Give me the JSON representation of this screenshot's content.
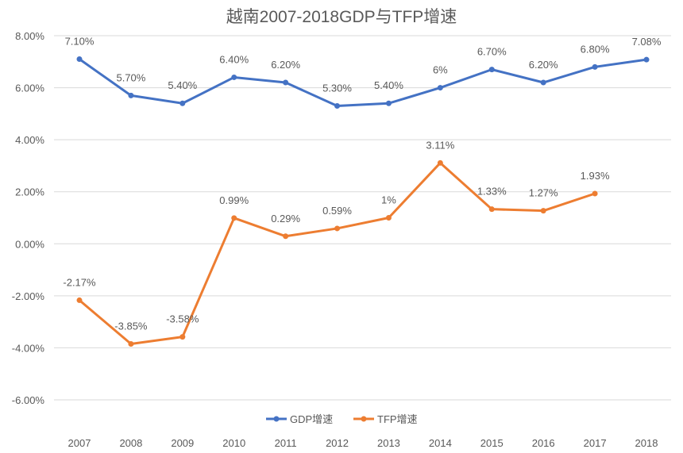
{
  "chart_data": {
    "type": "line",
    "title": "越南2007-2018GDP与TFP增速",
    "xlabel": "",
    "ylabel": "",
    "categories": [
      "2007",
      "2008",
      "2009",
      "2010",
      "2011",
      "2012",
      "2013",
      "2014",
      "2015",
      "2016",
      "2017",
      "2018"
    ],
    "ylim": [
      -6,
      8
    ],
    "yticks": [
      "8.00%",
      "6.00%",
      "4.00%",
      "2.00%",
      "0.00%",
      "-2.00%",
      "-4.00%",
      "-6.00%"
    ],
    "ytick_values": [
      8,
      6,
      4,
      2,
      0,
      -2,
      -4,
      -6
    ],
    "grid": true,
    "legend": "bottom",
    "series": [
      {
        "name": "GDP增速",
        "color": "#4472C4",
        "values": [
          7.1,
          5.7,
          5.4,
          6.4,
          6.2,
          5.3,
          5.4,
          6.0,
          6.7,
          6.2,
          6.8,
          7.08
        ],
        "labels": [
          "7.10%",
          "5.70%",
          "5.40%",
          "6.40%",
          "6.20%",
          "5.30%",
          "5.40%",
          "6%",
          "6.70%",
          "6.20%",
          "6.80%",
          "7.08%"
        ]
      },
      {
        "name": "TFP增速",
        "color": "#ED7D31",
        "values": [
          -2.17,
          -3.85,
          -3.58,
          0.99,
          0.29,
          0.59,
          1.0,
          3.11,
          1.33,
          1.27,
          1.93,
          null
        ],
        "labels": [
          "-2.17%",
          "-3.85%",
          "-3.58%",
          "0.99%",
          "0.29%",
          "0.59%",
          "1%",
          "3.11%",
          "1.33%",
          "1.27%",
          "1.93%",
          null
        ]
      }
    ]
  }
}
